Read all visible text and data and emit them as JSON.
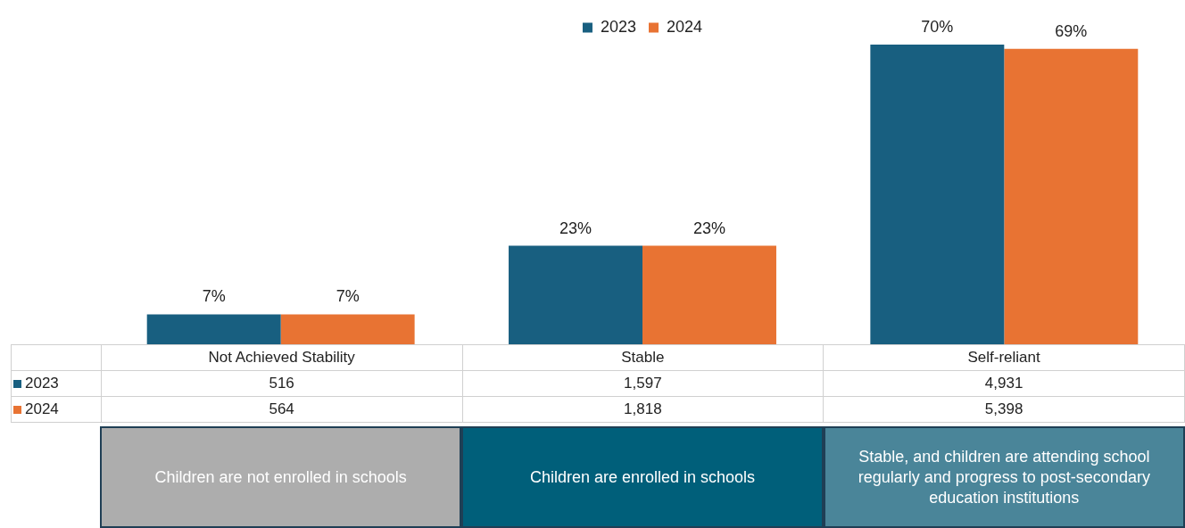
{
  "chart_data": {
    "type": "bar",
    "categories": [
      "Not Achieved Stability",
      "Stable",
      "Self-reliant"
    ],
    "series": [
      {
        "name": "2023",
        "color": "#185f80",
        "values": [
          7,
          23,
          70
        ],
        "value_labels": [
          "7%",
          "23%",
          "70%"
        ]
      },
      {
        "name": "2024",
        "color": "#e87333",
        "values": [
          7,
          23,
          69
        ],
        "value_labels": [
          "7%",
          "23%",
          "69%"
        ]
      }
    ],
    "legend": "top",
    "annotations": [
      "516",
      "1,597",
      "4,931",
      "564",
      "1,818",
      "5,398",
      "Children are not enrolled in schools",
      "Children are enrolled in schools",
      "Stable, and children are attending school regularly and progress to post-secondary education institutions"
    ]
  }
}
